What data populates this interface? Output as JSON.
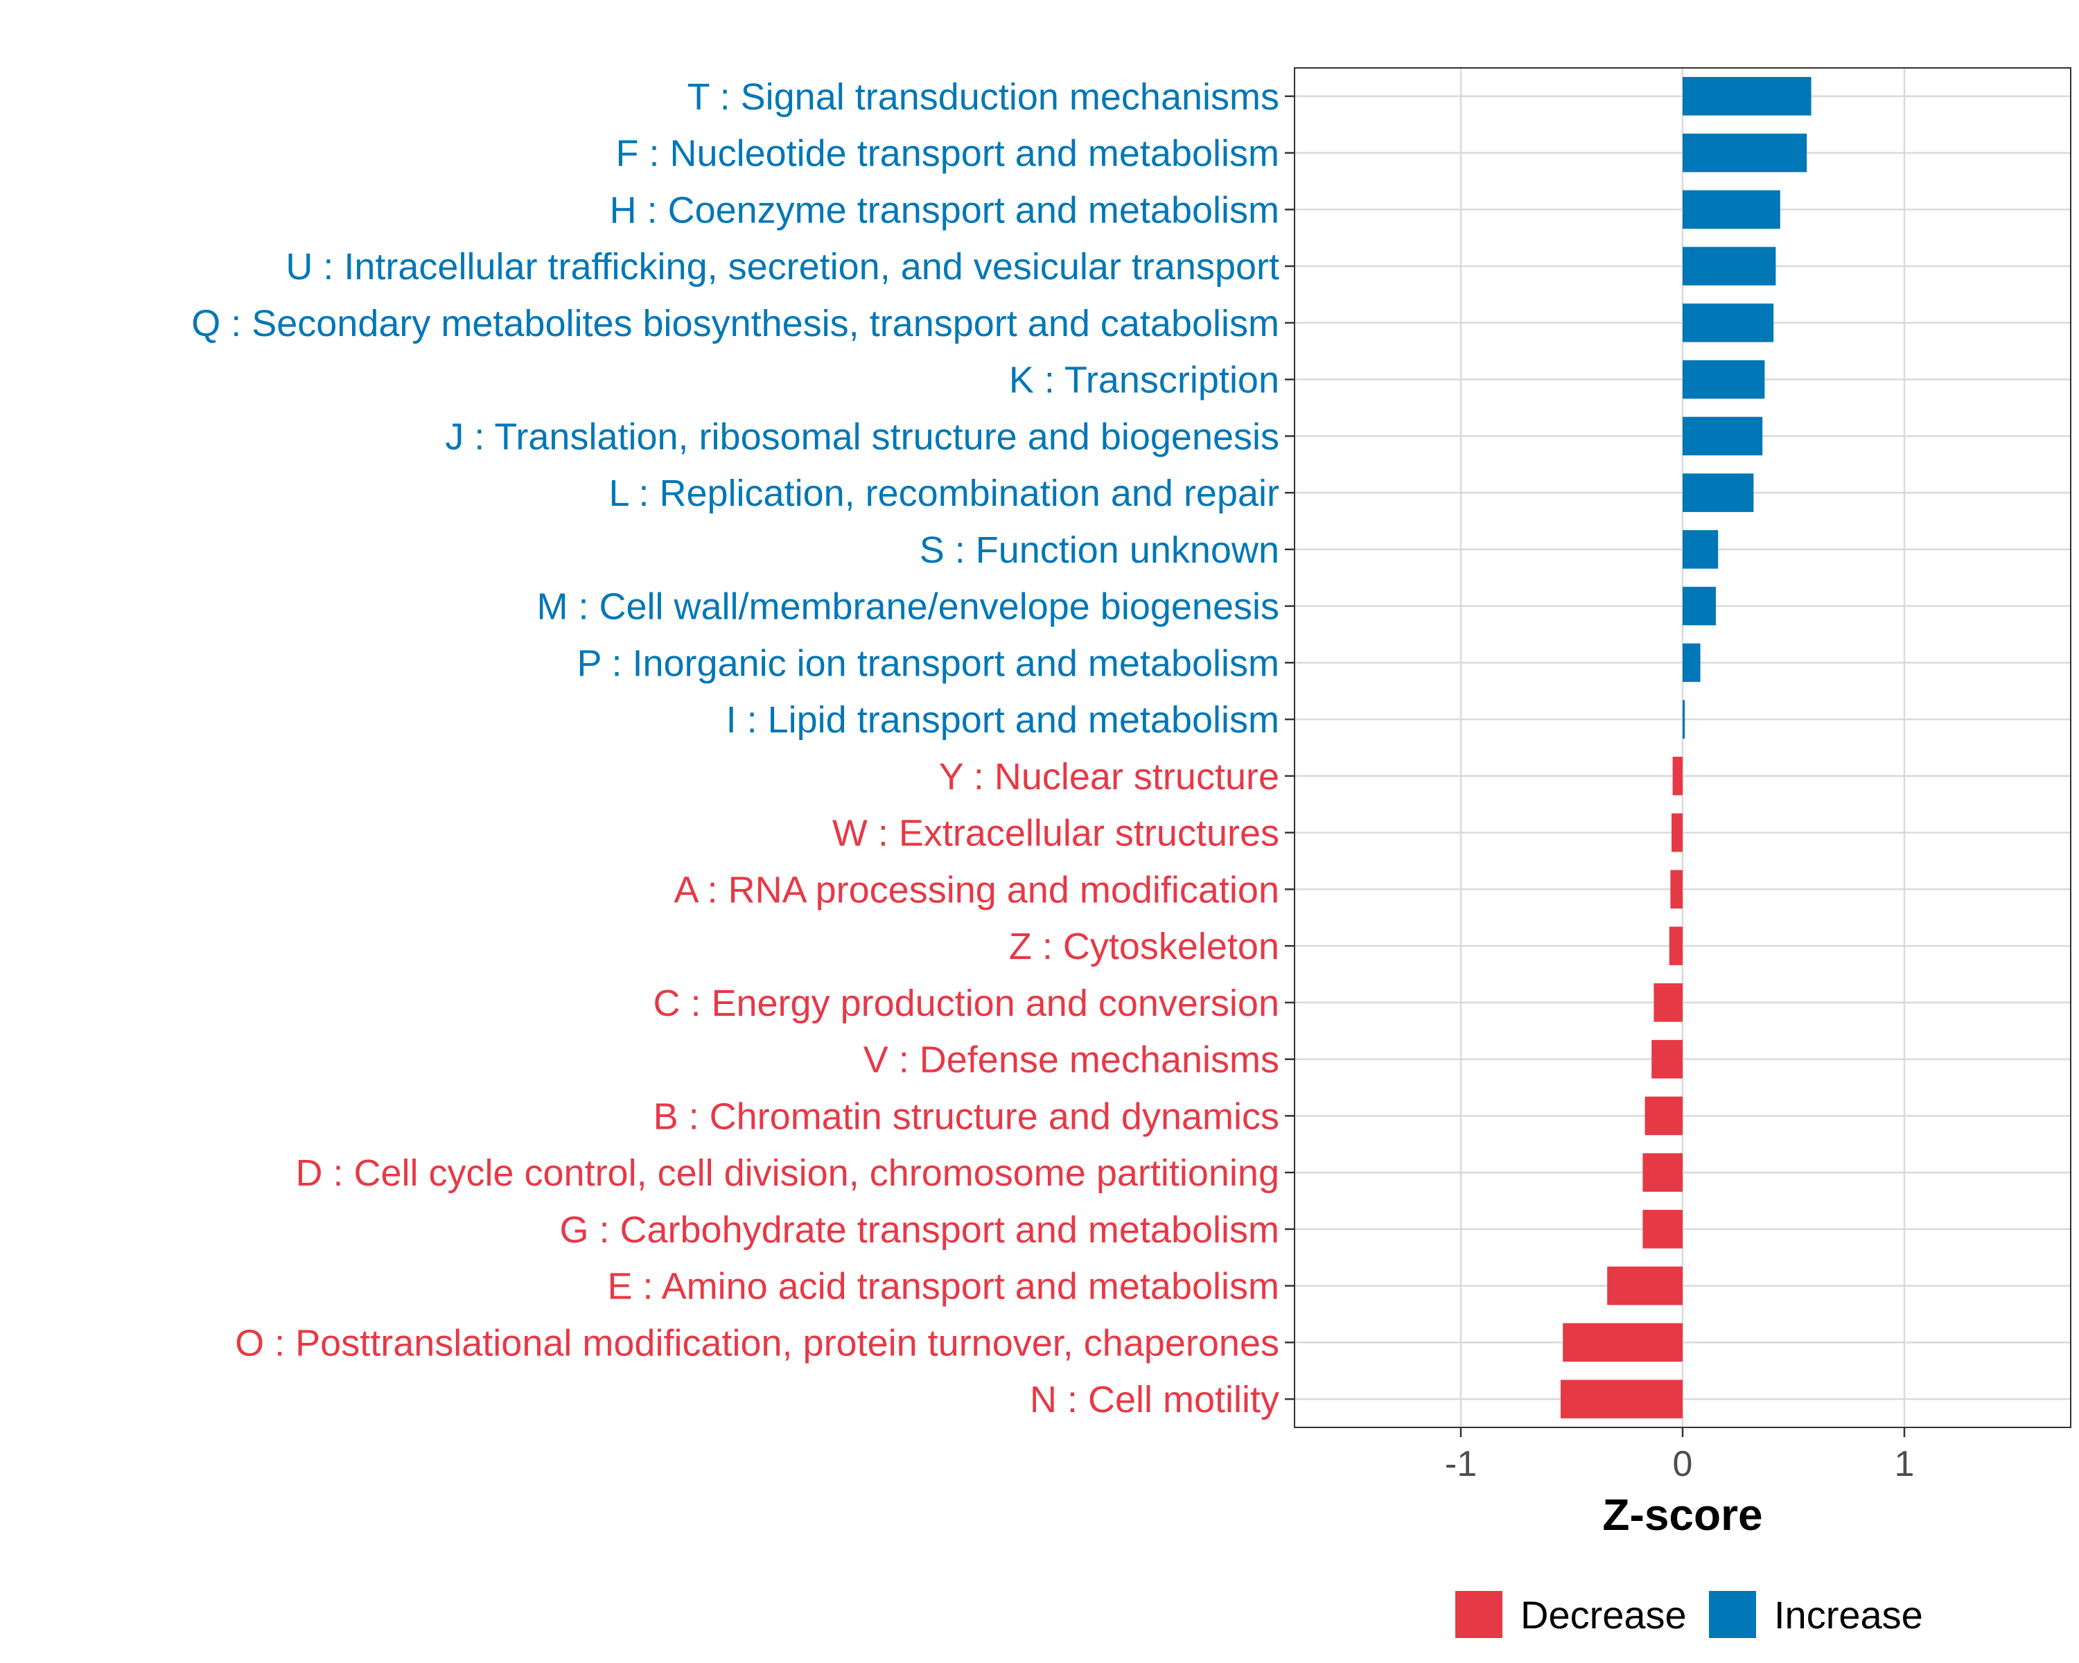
{
  "chart_data": {
    "type": "bar",
    "orientation": "horizontal",
    "xlabel": "Z-score",
    "ylabel": "",
    "xlim": [
      -1.75,
      1.75
    ],
    "xticks": [
      -1,
      0,
      1
    ],
    "xtick_labels": [
      "-1",
      "0",
      "1"
    ],
    "grid": true,
    "legend_position": "bottom",
    "colors": {
      "Decrease": "#e63946",
      "Increase": "#0077b6"
    },
    "legend": [
      {
        "name": "Decrease",
        "color": "#e63946"
      },
      {
        "name": "Increase",
        "color": "#0077b6"
      }
    ],
    "categories": [
      "T : Signal transduction mechanisms",
      "F : Nucleotide transport and metabolism",
      "H : Coenzyme transport and metabolism",
      "U : Intracellular trafficking, secretion, and vesicular transport",
      "Q : Secondary metabolites biosynthesis, transport and catabolism",
      "K : Transcription",
      "J : Translation, ribosomal structure and biogenesis",
      "L : Replication, recombination and repair",
      "S : Function unknown",
      "M : Cell wall/membrane/envelope biogenesis",
      "P : Inorganic ion transport and metabolism",
      "I : Lipid transport and metabolism",
      "Y : Nuclear structure",
      "W : Extracellular structures",
      "A : RNA processing and modification",
      "Z : Cytoskeleton",
      "C : Energy production and conversion",
      "V : Defense mechanisms",
      "B : Chromatin structure and dynamics",
      "D : Cell cycle control, cell division, chromosome partitioning",
      "G : Carbohydrate transport and metabolism",
      "E : Amino acid transport and metabolism",
      "O : Posttranslational modification, protein turnover, chaperones",
      "N : Cell motility"
    ],
    "values": [
      0.58,
      0.56,
      0.44,
      0.42,
      0.41,
      0.37,
      0.36,
      0.32,
      0.16,
      0.15,
      0.08,
      0.01,
      -0.045,
      -0.05,
      -0.055,
      -0.06,
      -0.13,
      -0.14,
      -0.17,
      -0.18,
      -0.18,
      -0.34,
      -0.54,
      -0.55
    ],
    "groups": [
      "Increase",
      "Increase",
      "Increase",
      "Increase",
      "Increase",
      "Increase",
      "Increase",
      "Increase",
      "Increase",
      "Increase",
      "Increase",
      "Increase",
      "Decrease",
      "Decrease",
      "Decrease",
      "Decrease",
      "Decrease",
      "Decrease",
      "Decrease",
      "Decrease",
      "Decrease",
      "Decrease",
      "Decrease",
      "Decrease"
    ]
  }
}
